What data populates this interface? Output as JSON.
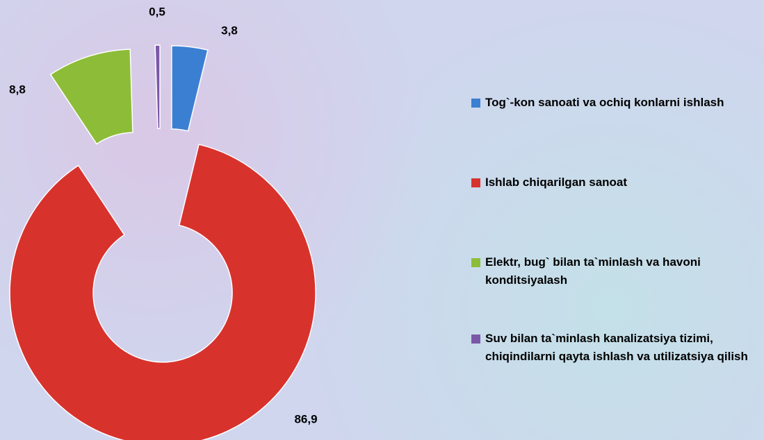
{
  "chart_data": {
    "type": "donut",
    "categories": [
      "Tog`-kon sanoati va ochiq konlarni ishlash",
      "Ishlab chiqarilgan sanoat",
      "Elektr, bug` bilan ta`minlash va havoni konditsiyalash",
      "Suv bilan ta`minlash kanalizatsiya tizimi, chiqindilarni qayta ishlash va utilizatsiya qilish"
    ],
    "values": [
      3.8,
      86.9,
      8.8,
      0.5
    ],
    "value_labels": [
      "3,8",
      "86,9",
      "8,8",
      "0,5"
    ],
    "colors": [
      "#3b7fd2",
      "#d8322d",
      "#8dbd38",
      "#7a58a6"
    ]
  }
}
